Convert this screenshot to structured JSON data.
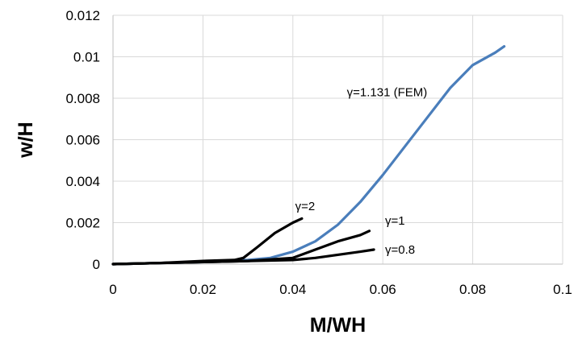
{
  "chart_data": {
    "type": "line",
    "title": "",
    "xlabel": "M/WH",
    "ylabel": "w/H",
    "xlim": [
      0,
      0.1
    ],
    "ylim": [
      0,
      0.012
    ],
    "x_ticks": [
      "0",
      "0.02",
      "0.04",
      "0.06",
      "0.08",
      "0.1"
    ],
    "y_ticks": [
      "0",
      "0.002",
      "0.004",
      "0.006",
      "0.008",
      "0.01",
      "0.012"
    ],
    "grid": true,
    "legend": "none",
    "series": [
      {
        "name": "γ=1.131 (FEM)",
        "color": "#4a7ebb",
        "x": [
          0,
          0.01,
          0.02,
          0.03,
          0.035,
          0.04,
          0.045,
          0.05,
          0.055,
          0.06,
          0.065,
          0.07,
          0.075,
          0.08,
          0.085,
          0.087
        ],
        "y": [
          0,
          5e-05,
          0.0001,
          0.0002,
          0.0003,
          0.0006,
          0.0011,
          0.0019,
          0.003,
          0.0043,
          0.0057,
          0.0071,
          0.0085,
          0.0096,
          0.0102,
          0.0105
        ]
      },
      {
        "name": "γ=2",
        "color": "#000000",
        "x": [
          0,
          0.01,
          0.02,
          0.027,
          0.029,
          0.032,
          0.036,
          0.04,
          0.042
        ],
        "y": [
          0,
          5e-05,
          0.00015,
          0.0002,
          0.0003,
          0.0008,
          0.0015,
          0.002,
          0.0022
        ]
      },
      {
        "name": "γ=1",
        "color": "#000000",
        "x": [
          0,
          0.01,
          0.02,
          0.03,
          0.04,
          0.045,
          0.05,
          0.055,
          0.057
        ],
        "y": [
          0,
          5e-05,
          0.0001,
          0.00015,
          0.0003,
          0.0007,
          0.0011,
          0.0014,
          0.0016
        ]
      },
      {
        "name": "γ=0.8",
        "color": "#000000",
        "x": [
          0,
          0.01,
          0.02,
          0.03,
          0.04,
          0.045,
          0.05,
          0.055,
          0.058
        ],
        "y": [
          0,
          5e-05,
          0.0001,
          0.00015,
          0.0002,
          0.0003,
          0.00045,
          0.0006,
          0.0007
        ]
      }
    ],
    "annotations": [
      {
        "text": "γ=1.131 (FEM)",
        "x": 0.052,
        "y": 0.0081
      },
      {
        "text": "γ=2",
        "x": 0.0405,
        "y": 0.0026
      },
      {
        "text": "γ=1",
        "x": 0.0605,
        "y": 0.0019
      },
      {
        "text": "γ=0.8",
        "x": 0.0605,
        "y": 0.0005
      }
    ]
  }
}
